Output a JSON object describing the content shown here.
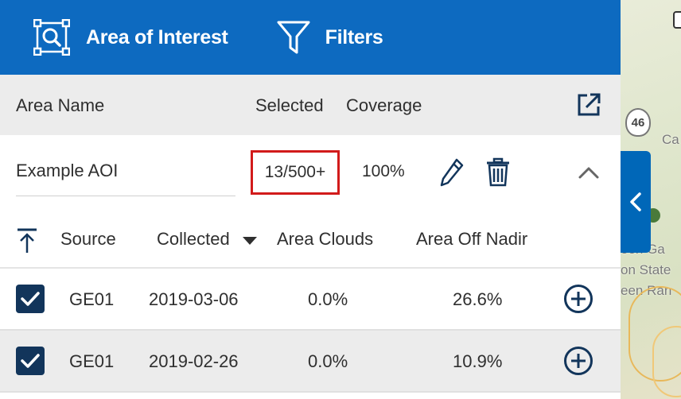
{
  "tabs": {
    "aoi_label": "Area of Interest",
    "filters_label": "Filters"
  },
  "columns": {
    "area_name": "Area Name",
    "selected": "Selected",
    "coverage": "Coverage"
  },
  "aoi": {
    "name": "Example AOI",
    "selected": "13/500+",
    "coverage": "100%"
  },
  "table": {
    "headers": {
      "source": "Source",
      "collected": "Collected",
      "area_clouds": "Area Clouds",
      "area_off_nadir": "Area Off Nadir"
    },
    "rows": [
      {
        "checked": true,
        "source": "GE01",
        "collected": "2019-03-06",
        "clouds": "0.0%",
        "off_nadir": "26.6%"
      },
      {
        "checked": true,
        "source": "GE01",
        "collected": "2019-02-26",
        "clouds": "0.0%",
        "off_nadir": "10.9%"
      }
    ]
  },
  "map": {
    "highway": "46",
    "labels": [
      "Ca",
      "een Ga",
      "on State",
      "een Ran"
    ]
  },
  "colors": {
    "header_bg": "#0d6ac0",
    "checkbox": "#12355b",
    "highlight": "#d21b1b"
  }
}
